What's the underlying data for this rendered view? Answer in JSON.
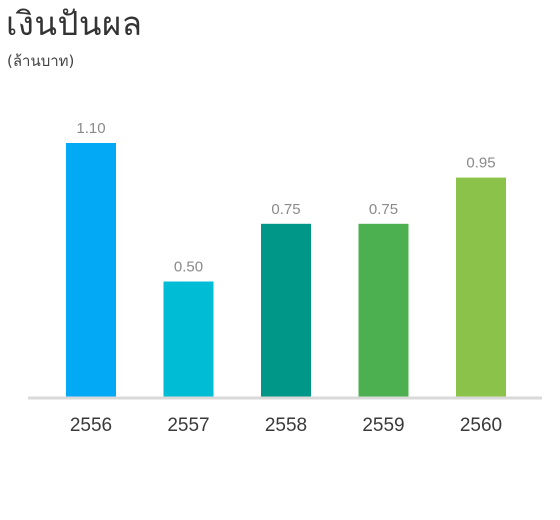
{
  "chart_data": {
    "type": "bar",
    "title": "เงินปันผล",
    "subtitle": "(ล้านบาท)",
    "xlabel": "",
    "ylabel": "",
    "categories": [
      "2556",
      "2557",
      "2558",
      "2559",
      "2560"
    ],
    "values": [
      1.1,
      0.5,
      0.75,
      0.75,
      0.95
    ],
    "value_labels": [
      "1.10",
      "0.50",
      "0.75",
      "0.75",
      "0.95"
    ],
    "colors": [
      "#03A9F4",
      "#00BCD4",
      "#009688",
      "#4CAF50",
      "#8BC34A"
    ],
    "baseline_color": "#d9d9d9",
    "ylim": [
      0,
      1.1
    ],
    "grid": false,
    "legend": "none"
  }
}
